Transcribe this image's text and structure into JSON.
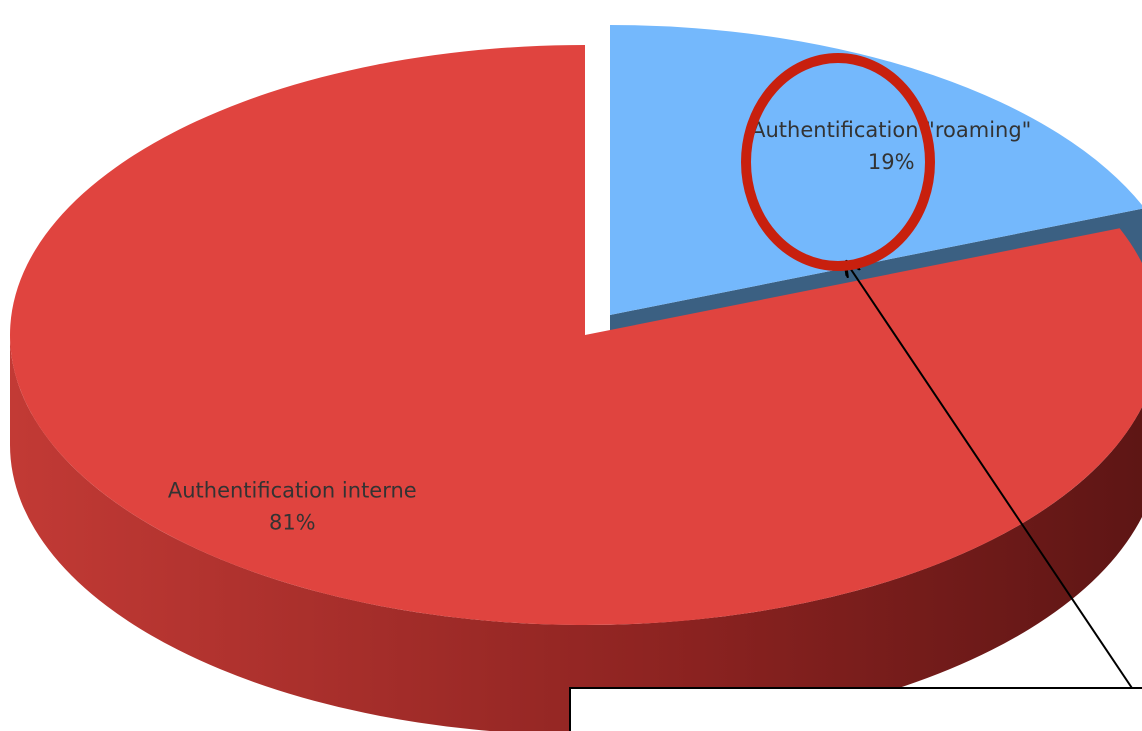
{
  "chart_data": {
    "type": "pie",
    "categories": [
      "Authentification \"roaming\"",
      "Authentification interne"
    ],
    "values": [
      19,
      81
    ],
    "value_labels": [
      "19%",
      "81%"
    ],
    "colors": [
      "#74b8fc",
      "#e0443f"
    ]
  }
}
